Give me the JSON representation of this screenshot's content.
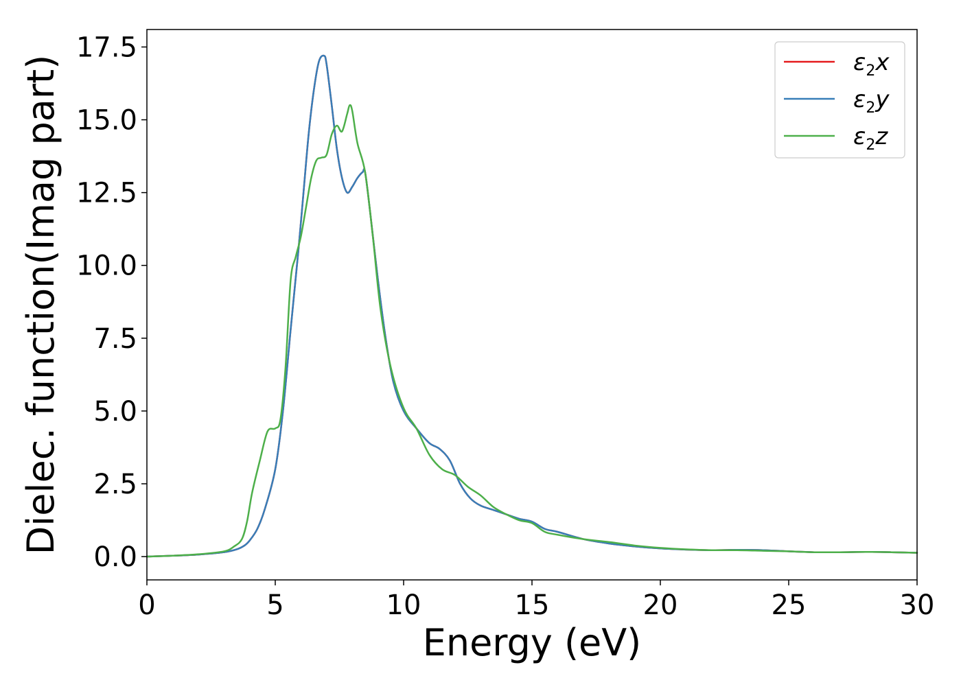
{
  "chart_data": {
    "type": "line",
    "xlabel": "Energy (eV)",
    "ylabel": "Dielec. function(Imag part)",
    "xlim": [
      0,
      30
    ],
    "ylim": [
      -0.8,
      18.1
    ],
    "xticks": [
      0,
      5,
      10,
      15,
      20,
      25,
      30
    ],
    "yticks": [
      0.0,
      2.5,
      5.0,
      7.5,
      10.0,
      12.5,
      15.0,
      17.5
    ],
    "xtick_labels": [
      "0",
      "5",
      "10",
      "15",
      "20",
      "25",
      "30"
    ],
    "ytick_labels": [
      "0.0",
      "2.5",
      "5.0",
      "7.5",
      "10.0",
      "12.5",
      "15.0",
      "17.5"
    ],
    "grid": false,
    "legend_position": "top-right",
    "legend": [
      {
        "symbol": "ε",
        "sub": "2",
        "var": "x",
        "color": "#e41a1c"
      },
      {
        "symbol": "ε",
        "sub": "2",
        "var": "y",
        "color": "#377eb8"
      },
      {
        "symbol": "ε",
        "sub": "2",
        "var": "z",
        "color": "#4daf4a"
      }
    ],
    "series": [
      {
        "color": "#e41a1c",
        "x": [
          0,
          1,
          2,
          3,
          3.5,
          3.8,
          4.0,
          4.3,
          4.6,
          5.0,
          5.3,
          5.6,
          5.9,
          6.1,
          6.3,
          6.5,
          6.7,
          6.9,
          7.0,
          7.2,
          7.4,
          7.6,
          7.8,
          8.0,
          8.2,
          8.4,
          8.5,
          8.7,
          9.0,
          9.3,
          9.6,
          10.0,
          10.5,
          11.0,
          11.4,
          11.8,
          12.2,
          12.6,
          13.0,
          13.5,
          14.0,
          14.5,
          15.0,
          15.5,
          16.0,
          17.0,
          18.0,
          19.0,
          20.0,
          21.0,
          22.0,
          23.0,
          24.0,
          25.0,
          26.0,
          27.0,
          28.0,
          29.0,
          30.0
        ],
        "y": [
          0.0,
          0.03,
          0.07,
          0.15,
          0.25,
          0.38,
          0.55,
          0.95,
          1.65,
          3.0,
          5.0,
          7.8,
          10.5,
          12.5,
          14.5,
          16.0,
          17.0,
          17.2,
          16.9,
          15.5,
          14.0,
          13.0,
          12.5,
          12.7,
          13.0,
          13.2,
          13.2,
          11.8,
          9.5,
          7.5,
          6.0,
          5.0,
          4.4,
          3.9,
          3.7,
          3.3,
          2.5,
          2.0,
          1.75,
          1.6,
          1.45,
          1.3,
          1.2,
          0.95,
          0.85,
          0.6,
          0.45,
          0.35,
          0.28,
          0.24,
          0.22,
          0.23,
          0.22,
          0.18,
          0.15,
          0.15,
          0.16,
          0.15,
          0.13
        ]
      },
      {
        "color": "#377eb8",
        "x": [
          0,
          1,
          2,
          3,
          3.5,
          3.8,
          4.0,
          4.3,
          4.6,
          5.0,
          5.3,
          5.6,
          5.9,
          6.1,
          6.3,
          6.5,
          6.7,
          6.9,
          7.0,
          7.2,
          7.4,
          7.6,
          7.8,
          8.0,
          8.2,
          8.4,
          8.5,
          8.7,
          9.0,
          9.3,
          9.6,
          10.0,
          10.5,
          11.0,
          11.4,
          11.8,
          12.2,
          12.6,
          13.0,
          13.5,
          14.0,
          14.5,
          15.0,
          15.5,
          16.0,
          17.0,
          18.0,
          19.0,
          20.0,
          21.0,
          22.0,
          23.0,
          24.0,
          25.0,
          26.0,
          27.0,
          28.0,
          29.0,
          30.0
        ],
        "y": [
          0.0,
          0.03,
          0.07,
          0.15,
          0.25,
          0.38,
          0.55,
          0.95,
          1.65,
          3.0,
          5.0,
          7.8,
          10.5,
          12.5,
          14.5,
          16.0,
          17.0,
          17.2,
          16.9,
          15.5,
          14.0,
          13.0,
          12.5,
          12.7,
          13.0,
          13.2,
          13.2,
          11.8,
          9.5,
          7.5,
          6.0,
          5.0,
          4.4,
          3.9,
          3.7,
          3.3,
          2.5,
          2.0,
          1.75,
          1.6,
          1.45,
          1.3,
          1.2,
          0.95,
          0.85,
          0.6,
          0.45,
          0.35,
          0.28,
          0.24,
          0.22,
          0.23,
          0.22,
          0.18,
          0.15,
          0.15,
          0.16,
          0.15,
          0.13
        ]
      },
      {
        "color": "#4daf4a",
        "x": [
          0,
          1,
          2,
          3,
          3.4,
          3.7,
          3.9,
          4.1,
          4.4,
          4.7,
          5.0,
          5.2,
          5.4,
          5.6,
          5.8,
          6.0,
          6.2,
          6.4,
          6.6,
          6.8,
          7.0,
          7.2,
          7.4,
          7.6,
          7.8,
          7.9,
          8.0,
          8.2,
          8.5,
          8.8,
          9.1,
          9.5,
          10.0,
          10.5,
          11.0,
          11.5,
          12.0,
          12.5,
          13.0,
          13.5,
          14.0,
          14.5,
          15.0,
          15.5,
          16.0,
          17.0,
          18.0,
          19.0,
          20.0,
          21.0,
          22.0,
          23.0,
          24.0,
          25.0,
          26.0,
          27.0,
          28.0,
          29.0,
          30.0
        ],
        "y": [
          0.0,
          0.03,
          0.08,
          0.18,
          0.35,
          0.6,
          1.2,
          2.2,
          3.3,
          4.3,
          4.4,
          4.7,
          6.5,
          9.5,
          10.3,
          11.0,
          12.0,
          13.0,
          13.6,
          13.7,
          13.8,
          14.5,
          14.8,
          14.6,
          15.2,
          15.5,
          15.3,
          14.2,
          13.2,
          11.0,
          8.5,
          6.5,
          5.1,
          4.4,
          3.5,
          3.0,
          2.8,
          2.4,
          2.1,
          1.7,
          1.45,
          1.25,
          1.15,
          0.85,
          0.75,
          0.6,
          0.5,
          0.38,
          0.3,
          0.25,
          0.22,
          0.22,
          0.2,
          0.18,
          0.15,
          0.15,
          0.16,
          0.15,
          0.13
        ]
      }
    ]
  }
}
